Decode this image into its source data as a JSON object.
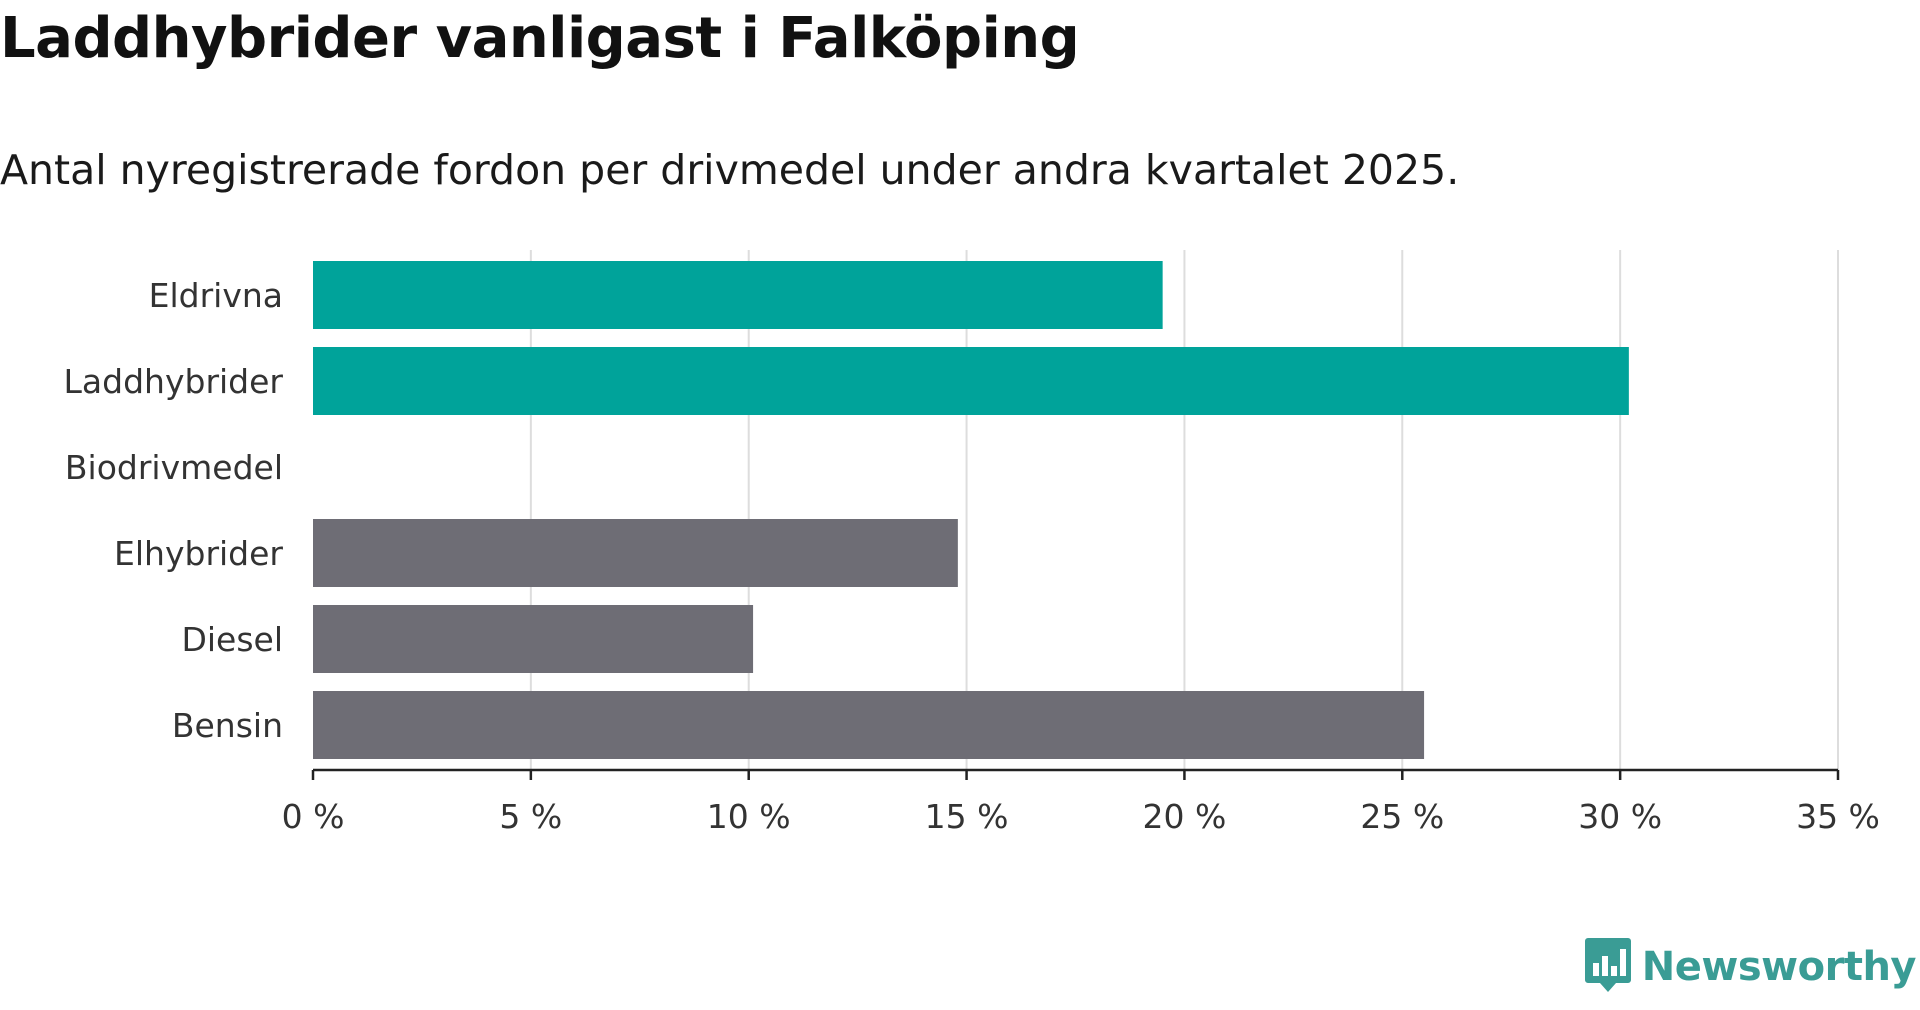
{
  "title": "Laddhybrider vanligast i Falköping",
  "subtitle": "Antal nyregistrerade fordon per drivmedel under andra kvartalet 2025.",
  "brand": {
    "name": "Newsworthy",
    "icon": "newsworthy-logo-icon",
    "color": "#3a9c95"
  },
  "colors": {
    "highlight": "#00a39a",
    "other": "#6e6d75",
    "grid": "#dddddd",
    "axis": "#222222"
  },
  "chart_data": {
    "type": "bar",
    "orientation": "horizontal",
    "categories": [
      "Eldrivna",
      "Laddhybrider",
      "Biodrivmedel",
      "Elhybrider",
      "Diesel",
      "Bensin"
    ],
    "values": [
      19.5,
      30.2,
      0,
      14.8,
      10.1,
      25.5
    ],
    "highlighted": [
      true,
      true,
      false,
      false,
      false,
      false
    ],
    "xlim": [
      0,
      35
    ],
    "xticks": [
      0,
      5,
      10,
      15,
      20,
      25,
      30,
      35
    ],
    "xtick_labels": [
      "0 %",
      "5 %",
      "10 %",
      "15 %",
      "20 %",
      "25 %",
      "30 %",
      "35 %"
    ],
    "unit": "%",
    "grid": true
  }
}
